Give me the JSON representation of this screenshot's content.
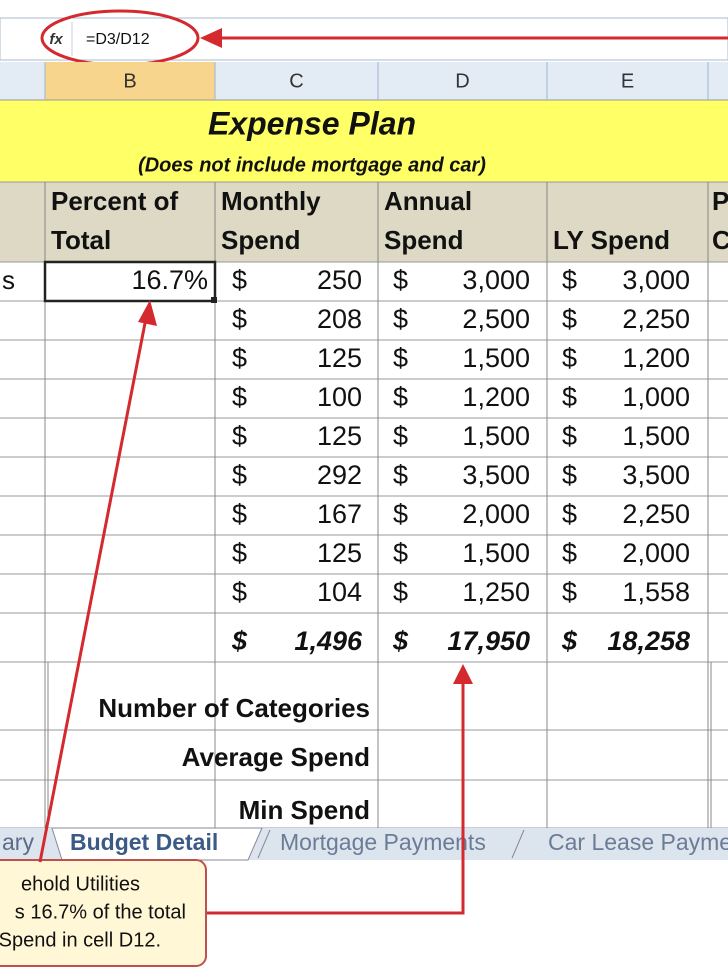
{
  "formula_bar": {
    "function_icon": "fx",
    "formula": "=D3/D12"
  },
  "column_headers": [
    "B",
    "C",
    "D",
    "E"
  ],
  "title": "Expense Plan",
  "subtitle": "(Does not include mortgage and car)",
  "table": {
    "headers": [
      [
        "Percent of",
        "Total"
      ],
      [
        "Monthly",
        "Spend"
      ],
      [
        "Annual",
        "Spend"
      ],
      [
        "",
        "LY Spend"
      ]
    ],
    "partial_header": [
      "P",
      "C"
    ],
    "row_label_fragment": "s",
    "percent_cell": "16.7%",
    "currency": "$",
    "rows": [
      [
        "250",
        "3,000",
        "3,000"
      ],
      [
        "208",
        "2,500",
        "2,250"
      ],
      [
        "125",
        "1,500",
        "1,200"
      ],
      [
        "100",
        "1,200",
        "1,000"
      ],
      [
        "125",
        "1,500",
        "1,500"
      ],
      [
        "292",
        "3,500",
        "3,500"
      ],
      [
        "167",
        "2,000",
        "2,250"
      ],
      [
        "125",
        "1,500",
        "2,000"
      ],
      [
        "104",
        "1,250",
        "1,558"
      ]
    ],
    "totals": [
      "1,496",
      "17,950",
      "18,258"
    ]
  },
  "summary_labels": [
    "Number of Categories",
    "Average Spend",
    "Min Spend"
  ],
  "sheet_tabs": [
    "ary",
    "Budget Detail",
    "Mortgage Payments",
    "Car Lease Payme"
  ],
  "callout": {
    "lines": [
      "ehold Utilities",
      "s 16.7% of the total",
      "Spend in cell D12."
    ]
  }
}
